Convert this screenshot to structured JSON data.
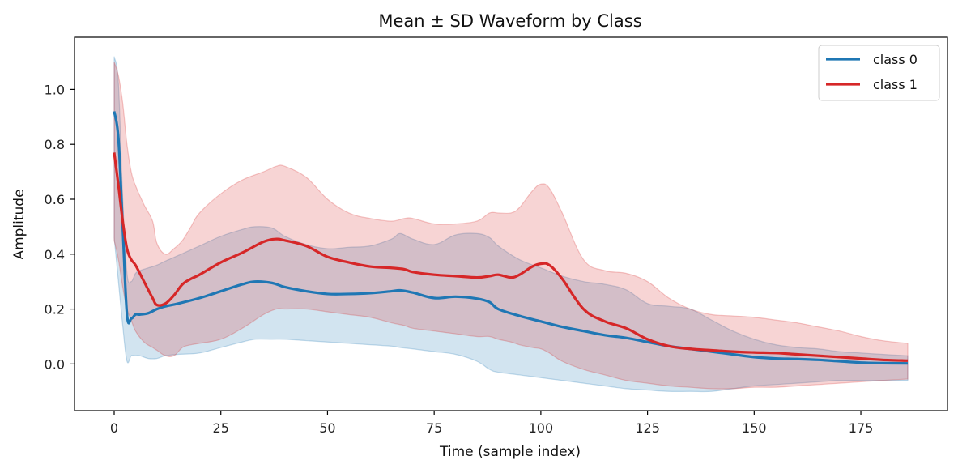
{
  "chart_data": {
    "type": "line",
    "title": "Mean ± SD Waveform by Class",
    "xlabel": "Time (sample index)",
    "ylabel": "Amplitude",
    "xlim": [
      -9.3,
      195.3
    ],
    "ylim": [
      -0.17,
      1.19
    ],
    "x_ticks": [
      0,
      25,
      50,
      75,
      100,
      125,
      150,
      175
    ],
    "y_ticks": [
      0.0,
      0.2,
      0.4,
      0.6,
      0.8,
      1.0
    ],
    "x_tick_labels": [
      "0",
      "25",
      "50",
      "75",
      "100",
      "125",
      "150",
      "175"
    ],
    "y_tick_labels": [
      "0.0",
      "0.2",
      "0.4",
      "0.6",
      "0.8",
      "1.0"
    ],
    "grid": false,
    "legend_position": "top-right",
    "series": [
      {
        "name": "class 0",
        "color": "#1f77b4",
        "x": [
          0,
          1,
          2,
          3,
          4,
          5,
          6,
          8,
          10,
          12,
          15,
          20,
          25,
          30,
          33,
          37,
          40,
          45,
          50,
          55,
          60,
          65,
          67,
          70,
          75,
          80,
          85,
          88,
          90,
          95,
          100,
          105,
          110,
          115,
          120,
          125,
          130,
          135,
          140,
          145,
          150,
          155,
          160,
          165,
          170,
          175,
          180,
          186
        ],
        "mean": [
          0.92,
          0.82,
          0.5,
          0.18,
          0.165,
          0.18,
          0.18,
          0.185,
          0.2,
          0.21,
          0.22,
          0.24,
          0.265,
          0.29,
          0.3,
          0.295,
          0.28,
          0.265,
          0.255,
          0.255,
          0.258,
          0.265,
          0.268,
          0.26,
          0.24,
          0.245,
          0.238,
          0.225,
          0.2,
          0.175,
          0.155,
          0.135,
          0.12,
          0.105,
          0.095,
          0.08,
          0.065,
          0.055,
          0.045,
          0.035,
          0.025,
          0.02,
          0.018,
          0.015,
          0.01,
          0.005,
          0.003,
          0.002
        ],
        "upper": [
          1.12,
          1.02,
          0.6,
          0.33,
          0.3,
          0.33,
          0.34,
          0.35,
          0.36,
          0.375,
          0.395,
          0.43,
          0.465,
          0.49,
          0.5,
          0.495,
          0.465,
          0.435,
          0.42,
          0.425,
          0.43,
          0.455,
          0.475,
          0.455,
          0.435,
          0.47,
          0.475,
          0.46,
          0.43,
          0.38,
          0.35,
          0.32,
          0.3,
          0.29,
          0.27,
          0.22,
          0.21,
          0.2,
          0.16,
          0.12,
          0.09,
          0.07,
          0.06,
          0.055,
          0.045,
          0.04,
          0.035,
          0.03
        ],
        "lower": [
          0.46,
          0.3,
          0.14,
          0.01,
          0.03,
          0.03,
          0.03,
          0.02,
          0.02,
          0.03,
          0.035,
          0.04,
          0.06,
          0.08,
          0.09,
          0.09,
          0.09,
          0.085,
          0.08,
          0.075,
          0.07,
          0.065,
          0.06,
          0.055,
          0.045,
          0.035,
          0.01,
          -0.02,
          -0.03,
          -0.04,
          -0.05,
          -0.06,
          -0.07,
          -0.08,
          -0.09,
          -0.095,
          -0.1,
          -0.1,
          -0.1,
          -0.09,
          -0.08,
          -0.075,
          -0.07,
          -0.065,
          -0.06,
          -0.06,
          -0.06,
          -0.06
        ]
      },
      {
        "name": "class 1",
        "color": "#d62728",
        "x": [
          0,
          1,
          2,
          3,
          4,
          5,
          7,
          9,
          10,
          12,
          14,
          16,
          18,
          20,
          25,
          30,
          35,
          38,
          40,
          45,
          50,
          55,
          60,
          65,
          68,
          70,
          75,
          80,
          85,
          88,
          90,
          93,
          95,
          98,
          100,
          102,
          105,
          110,
          115,
          120,
          125,
          130,
          135,
          140,
          145,
          150,
          155,
          160,
          165,
          170,
          175,
          180,
          186
        ],
        "mean": [
          0.77,
          0.65,
          0.52,
          0.42,
          0.38,
          0.36,
          0.3,
          0.24,
          0.215,
          0.22,
          0.25,
          0.29,
          0.31,
          0.325,
          0.37,
          0.405,
          0.445,
          0.455,
          0.45,
          0.43,
          0.39,
          0.37,
          0.355,
          0.35,
          0.345,
          0.335,
          0.325,
          0.32,
          0.315,
          0.32,
          0.325,
          0.315,
          0.325,
          0.355,
          0.365,
          0.36,
          0.31,
          0.2,
          0.155,
          0.13,
          0.09,
          0.065,
          0.055,
          0.05,
          0.045,
          0.042,
          0.04,
          0.035,
          0.03,
          0.025,
          0.02,
          0.015,
          0.012
        ],
        "upper": [
          1.1,
          1.05,
          0.95,
          0.8,
          0.7,
          0.65,
          0.58,
          0.52,
          0.44,
          0.4,
          0.42,
          0.45,
          0.5,
          0.55,
          0.62,
          0.67,
          0.7,
          0.72,
          0.72,
          0.68,
          0.6,
          0.55,
          0.53,
          0.52,
          0.53,
          0.53,
          0.51,
          0.51,
          0.52,
          0.55,
          0.55,
          0.55,
          0.57,
          0.63,
          0.655,
          0.64,
          0.55,
          0.38,
          0.34,
          0.33,
          0.3,
          0.24,
          0.2,
          0.18,
          0.175,
          0.17,
          0.16,
          0.15,
          0.135,
          0.12,
          0.1,
          0.085,
          0.075
        ],
        "lower": [
          0.45,
          0.38,
          0.28,
          0.2,
          0.16,
          0.12,
          0.08,
          0.06,
          0.05,
          0.03,
          0.03,
          0.06,
          0.07,
          0.075,
          0.09,
          0.13,
          0.18,
          0.2,
          0.2,
          0.2,
          0.19,
          0.18,
          0.17,
          0.15,
          0.14,
          0.13,
          0.12,
          0.11,
          0.1,
          0.1,
          0.09,
          0.08,
          0.07,
          0.06,
          0.055,
          0.04,
          0.01,
          -0.02,
          -0.04,
          -0.06,
          -0.07,
          -0.08,
          -0.085,
          -0.09,
          -0.09,
          -0.085,
          -0.085,
          -0.08,
          -0.075,
          -0.07,
          -0.065,
          -0.06,
          -0.055
        ]
      }
    ]
  }
}
